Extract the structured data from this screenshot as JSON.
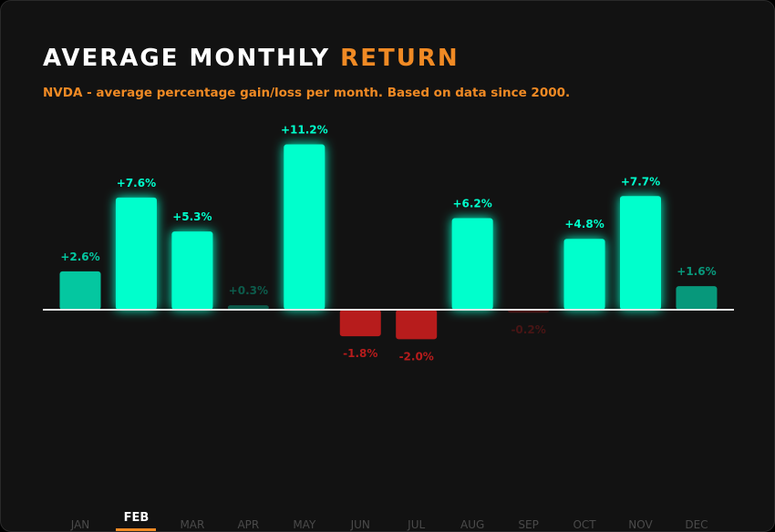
{
  "title": {
    "main": "AVERAGE MONTHLY ",
    "accent": "RETURN"
  },
  "subtitle": "NVDA - average percentage gain/loss per month. Based on data since 2000.",
  "colors": {
    "positive": "#00ffcc",
    "negative": "#b71c1c",
    "accent": "#f08a24",
    "background": "#121212"
  },
  "tabs": {
    "selected": "FEB"
  },
  "chart_data": {
    "type": "bar",
    "categories": [
      "JAN",
      "FEB",
      "MAR",
      "APR",
      "MAY",
      "JUN",
      "JUL",
      "AUG",
      "SEP",
      "OCT",
      "NOV",
      "DEC"
    ],
    "values": [
      2.6,
      7.6,
      5.3,
      0.3,
      11.2,
      -1.8,
      -2.0,
      6.2,
      -0.2,
      4.8,
      7.7,
      1.6
    ],
    "labels": [
      "+2.6%",
      "+7.6%",
      "+5.3%",
      "+0.3%",
      "+11.2%",
      "-1.8%",
      "-2.0%",
      "+6.2%",
      "-0.2%",
      "+4.8%",
      "+7.7%",
      "+1.6%"
    ],
    "unit": "%",
    "grid": false
  }
}
